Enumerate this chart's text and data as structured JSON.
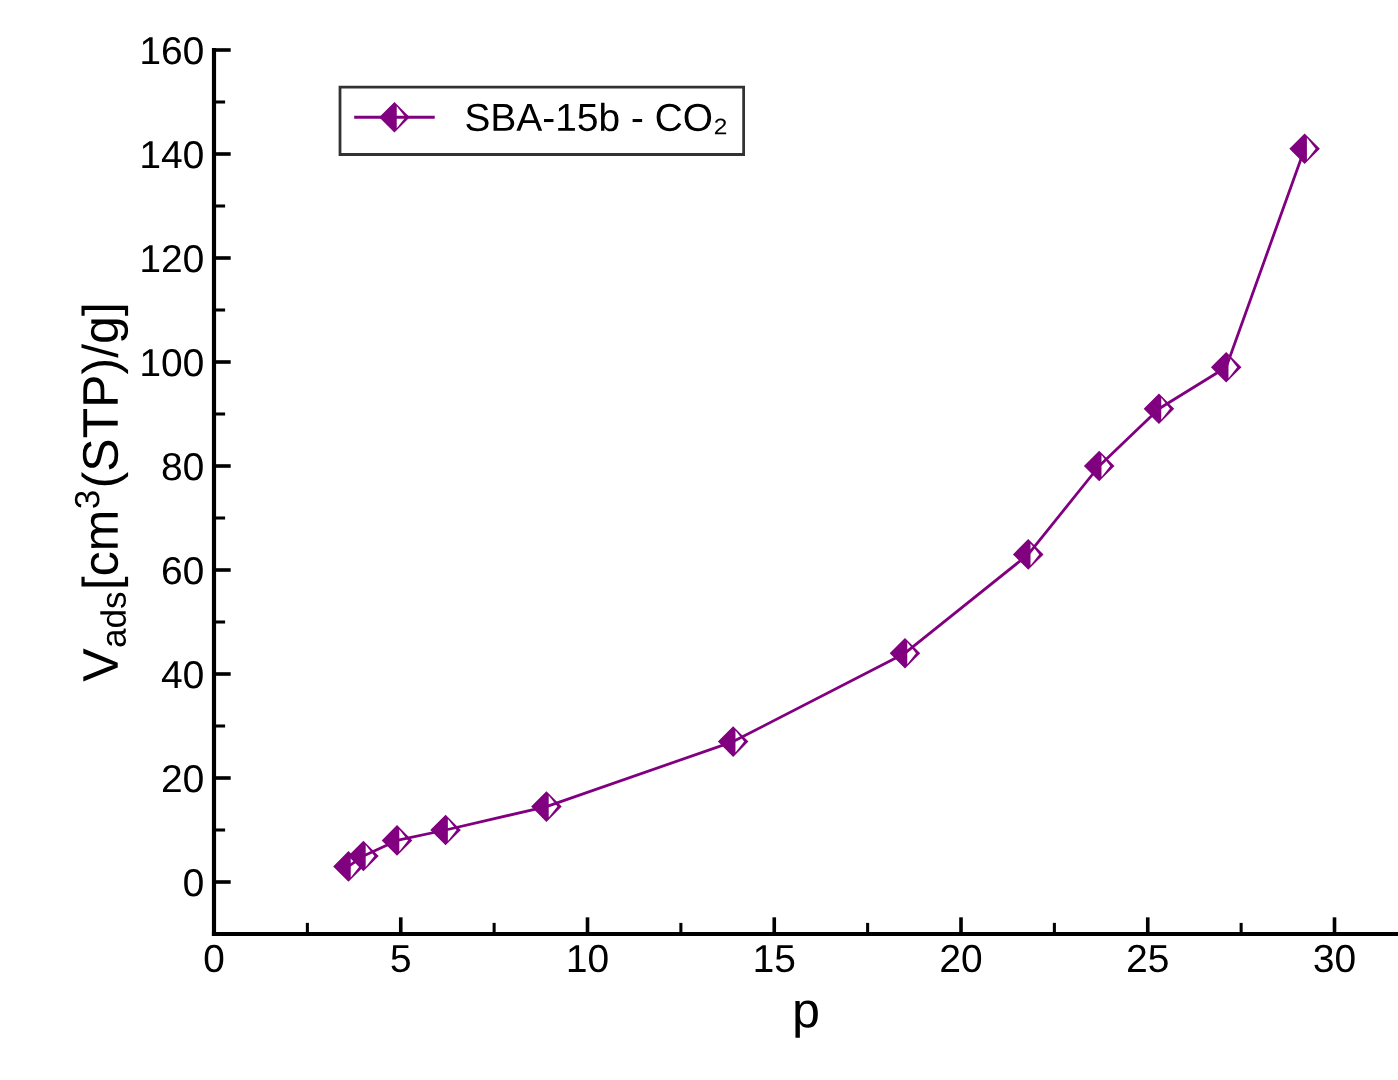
{
  "chart_data": {
    "type": "line",
    "xlabel": "p",
    "ylabel": "V$_{ads}$[cm$^{3}$(STP)/g]",
    "x": [
      3.6,
      4.0,
      4.9,
      6.2,
      8.9,
      13.9,
      18.5,
      21.8,
      23.7,
      25.3,
      27.1,
      29.2
    ],
    "series": [
      {
        "name": "SBA-15b - CO₂",
        "color": "#800080",
        "values": [
          3,
          5,
          8,
          10,
          14.5,
          27,
          44,
          63,
          80,
          91,
          99,
          141
        ]
      }
    ],
    "xlim": [
      0,
      31.7
    ],
    "xticks": [
      0,
      5,
      10,
      15,
      20,
      25,
      30
    ],
    "ylim": [
      -10,
      160
    ],
    "yticks": [
      0,
      20,
      40,
      60,
      80,
      100,
      120,
      140,
      160
    ],
    "marker": "diamond",
    "line_style": "solid",
    "legend": "top left",
    "grid": false
  }
}
